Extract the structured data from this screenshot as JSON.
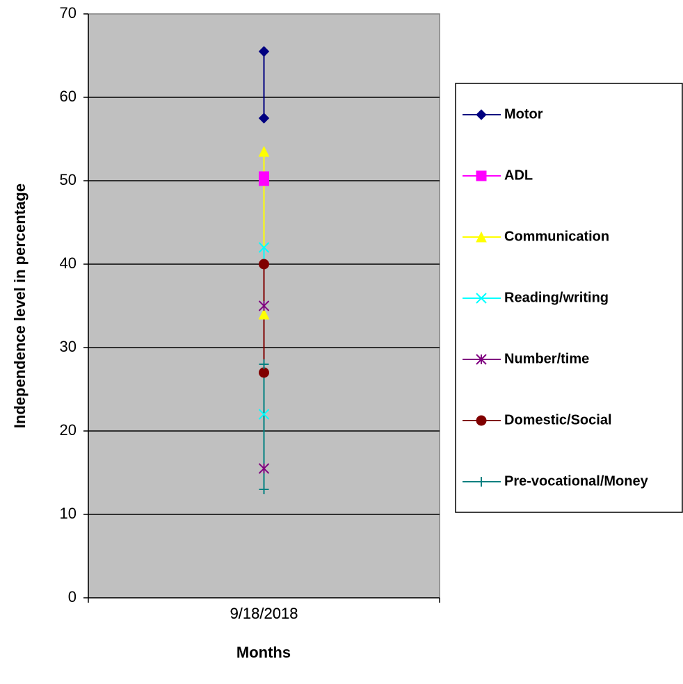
{
  "chart_data": {
    "type": "line",
    "x_label": "Months",
    "y_label": "Independence level in percentage",
    "x": [
      "9/18/2018",
      "9/18/2018"
    ],
    "ylim": [
      0,
      70
    ],
    "yticks": [
      0,
      10,
      20,
      30,
      40,
      50,
      60,
      70
    ],
    "grid": true,
    "legend": "right",
    "series": [
      {
        "name": "Motor",
        "color": "#000080",
        "marker": "diamond",
        "values": [
          65.5,
          57.5
        ]
      },
      {
        "name": "ADL",
        "color": "#ff00ff",
        "marker": "square",
        "values": [
          50.5,
          50
        ]
      },
      {
        "name": "Communication",
        "color": "#ffff00",
        "marker": "triangle",
        "values": [
          53.5,
          34
        ]
      },
      {
        "name": "Reading/writing",
        "color": "#00ffff",
        "marker": "x",
        "values": [
          42,
          22
        ]
      },
      {
        "name": "Number/time",
        "color": "#800080",
        "marker": "star",
        "values": [
          35,
          15.5
        ]
      },
      {
        "name": "Domestic/Social",
        "color": "#800000",
        "marker": "circle",
        "values": [
          40,
          27
        ]
      },
      {
        "name": "Pre-vocational/Money",
        "color": "#008080",
        "marker": "plus",
        "values": [
          28,
          13
        ]
      }
    ]
  }
}
